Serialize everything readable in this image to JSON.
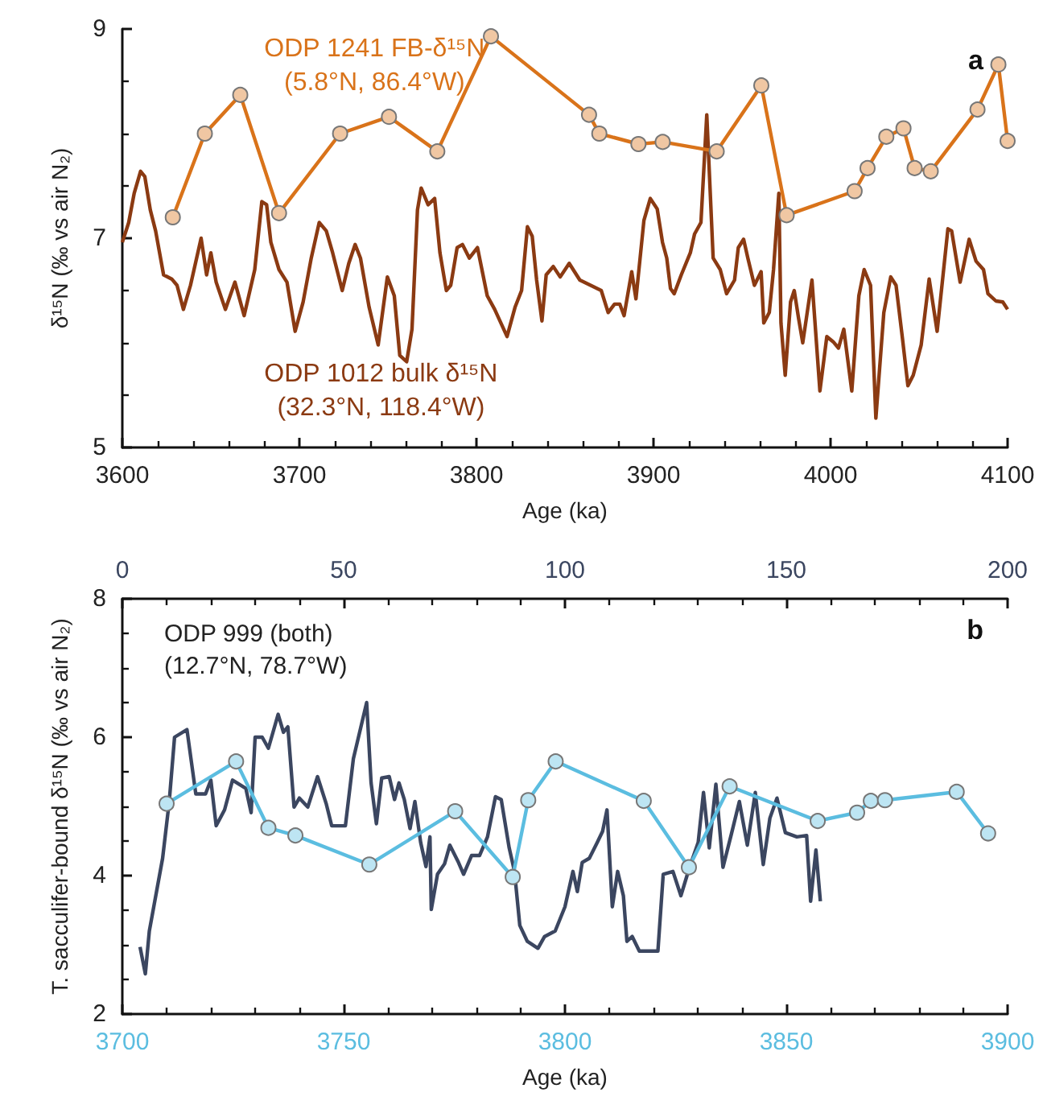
{
  "chart_data": [
    {
      "type": "line",
      "title": "a",
      "xlabel": "Age (ka)",
      "ylabel": "δ¹⁵N (‰ vs air N₂)",
      "xlim": [
        3600,
        4100
      ],
      "xticks": [
        3600,
        3700,
        3800,
        3900,
        4000,
        4100
      ],
      "ylim": [
        5,
        9
      ],
      "yticks": [
        5,
        7,
        9
      ],
      "series": [
        {
          "name": "ODP 1241 FB-δ¹⁵N\n(5.8°N, 86.4°W)",
          "color": "#d9731a",
          "marker": "circle",
          "x": [
            3628.5,
            3646.6,
            3666.6,
            3688.5,
            3723,
            3750.6,
            3777.9,
            3808.2,
            3863.6,
            3869.4,
            3891.5,
            3905.2,
            3935.7,
            3960.9,
            3975.2,
            4013.6,
            4020.9,
            4031.5,
            4041.2,
            4047.5,
            4056.6,
            4083,
            4094.8,
            4100
          ],
          "values": [
            7.2,
            8.0,
            8.37,
            7.24,
            8.0,
            8.16,
            7.83,
            8.93,
            8.18,
            8.0,
            7.9,
            7.92,
            7.83,
            8.46,
            7.22,
            7.45,
            7.67,
            7.97,
            8.05,
            7.67,
            7.64,
            8.23,
            8.66,
            7.93
          ]
        },
        {
          "name": "ODP 1012 bulk δ¹⁵N\n(32.3°N, 118.4°W)",
          "color": "#8b3a12",
          "marker": "none",
          "x": [
            3600,
            3603.6,
            3606.7,
            3610.3,
            3612.7,
            3615.8,
            3618.8,
            3623.3,
            3627.9,
            3630.9,
            3634.5,
            3638.5,
            3644.5,
            3647.6,
            3650,
            3653,
            3658.2,
            3663.6,
            3668.8,
            3674.8,
            3678.8,
            3681.5,
            3683.9,
            3688.5,
            3693,
            3697.6,
            3702.1,
            3706.7,
            3711.2,
            3715.2,
            3718.8,
            3724.2,
            3727.9,
            3731.5,
            3734.5,
            3739.4,
            3744.5,
            3749.7,
            3753.6,
            3756.7,
            3760.6,
            3763.6,
            3766.7,
            3768.8,
            3772.7,
            3776.4,
            3779.4,
            3783,
            3785.5,
            3789.1,
            3792.1,
            3796,
            3800.6,
            3806.1,
            3810.3,
            3817.3,
            3821.8,
            3825.5,
            3828.8,
            3831.5,
            3834,
            3837,
            3839.4,
            3843.4,
            3847.3,
            3852.4,
            3858.4,
            3864.5,
            3870.5,
            3874.4,
            3878,
            3881,
            3883.4,
            3887.7,
            3890.1,
            3894.6,
            3898.2,
            3902.1,
            3905.1,
            3907.5,
            3909.6,
            3911.7,
            3915.7,
            3920.8,
            3923.2,
            3926.8,
            3930.1,
            3933.7,
            3937.7,
            3941.3,
            3945.8,
            3947.9,
            3950.9,
            3953.3,
            3957,
            3960.8,
            3962.3,
            3965.4,
            3967.8,
            3970.8,
            3972,
            3974.4,
            3977.4,
            3979.5,
            3981.9,
            3984.3,
            3986.4,
            3989.5,
            3994,
            3997.9,
            4001.5,
            4004.5,
            4007.5,
            4012,
            4016,
            4019,
            4022.6,
            4025.6,
            4030.1,
            4034,
            4037,
            4040.7,
            4043.7,
            4046.7,
            4051.2,
            4055.7,
            4060.2,
            4066.3,
            4068.4,
            4073.2,
            4078.3,
            4082.2,
            4086.4,
            4088.9,
            4093.4,
            4097.3,
            4100
          ],
          "values": [
            6.96,
            7.15,
            7.43,
            7.64,
            7.59,
            7.27,
            7.07,
            6.65,
            6.61,
            6.55,
            6.32,
            6.55,
            7.0,
            6.65,
            6.86,
            6.58,
            6.32,
            6.58,
            6.26,
            6.7,
            7.35,
            7.32,
            6.96,
            6.7,
            6.58,
            6.11,
            6.39,
            6.81,
            7.15,
            7.07,
            6.86,
            6.5,
            6.76,
            6.94,
            6.81,
            6.34,
            5.98,
            6.63,
            6.45,
            5.88,
            5.82,
            6.13,
            7.27,
            7.48,
            7.32,
            7.38,
            6.86,
            6.5,
            6.55,
            6.91,
            6.94,
            6.81,
            6.91,
            6.45,
            6.32,
            6.06,
            6.34,
            6.5,
            7.11,
            7.02,
            6.6,
            6.21,
            6.65,
            6.73,
            6.63,
            6.76,
            6.6,
            6.55,
            6.5,
            6.29,
            6.37,
            6.37,
            6.26,
            6.68,
            6.42,
            7.17,
            7.38,
            7.28,
            6.96,
            6.81,
            6.52,
            6.47,
            6.65,
            6.86,
            7.04,
            7.15,
            8.18,
            6.81,
            6.7,
            6.47,
            6.6,
            6.91,
            6.99,
            6.81,
            6.55,
            6.68,
            6.19,
            6.29,
            6.7,
            7.43,
            6.19,
            5.69,
            6.39,
            6.5,
            6.24,
            6.0,
            6.24,
            6.6,
            5.54,
            6.06,
            6.01,
            5.95,
            6.13,
            5.54,
            6.45,
            6.7,
            6.55,
            5.28,
            6.29,
            6.63,
            6.55,
            6.03,
            5.59,
            5.69,
            5.98,
            6.61,
            6.11,
            7.09,
            7.07,
            6.58,
            6.99,
            6.78,
            6.7,
            6.47,
            6.4,
            6.39,
            6.32
          ]
        }
      ]
    },
    {
      "type": "line",
      "title": "b",
      "xlabel": "Age (ka)",
      "ylabel": "T. sacculifer-bound δ¹⁵N (‰ vs air N₂)",
      "annotations": [
        "ODP 999 (both)\n(12.7°N, 78.7°W)"
      ],
      "xlim": [
        3700,
        3900
      ],
      "xticks": [
        3700,
        3750,
        3800,
        3850,
        3900
      ],
      "x2lim": [
        0,
        200
      ],
      "x2ticks": [
        0,
        50,
        100,
        150,
        200
      ],
      "ylim": [
        2,
        8
      ],
      "yticks": [
        2,
        4,
        6,
        8
      ],
      "series": [
        {
          "color": "#3b4660",
          "marker": "none",
          "axis": "x2",
          "x": [
            4.0,
            5.2,
            6.1,
            9.1,
            10.6,
            11.8,
            14.6,
            16.6,
            18.8,
            20,
            21.2,
            23.1,
            24.9,
            27.9,
            29.1,
            30,
            31.6,
            33,
            35.2,
            36.4,
            37.4,
            38.8,
            40,
            41.9,
            44.1,
            46.1,
            47.3,
            50.4,
            52.2,
            55.2,
            56.2,
            57.4,
            58.6,
            60.3,
            61.5,
            62.5,
            63.7,
            65,
            66.1,
            67.4,
            68.6,
            69.5,
            69.8,
            71.2,
            72.8,
            74,
            75.8,
            77.1,
            78.9,
            80.7,
            82.5,
            84.3,
            85.6,
            87.4,
            88.6,
            89.8,
            91.5,
            93.9,
            95.4,
            97.8,
            100,
            101.8,
            102.8,
            103.9,
            105.5,
            107.3,
            108.5,
            109.5,
            110.7,
            111.9,
            113.2,
            114,
            115.2,
            116.8,
            121,
            122.2,
            124.4,
            126.2,
            128,
            130.1,
            131.3,
            132.6,
            134.1,
            135.7,
            137.6,
            139.4,
            141.2,
            143,
            144.8,
            146.3,
            147.9,
            149.8,
            152.4,
            154.6,
            155.5,
            156.7,
            157.7
          ],
          "values": [
            2.97,
            2.58,
            3.2,
            4.25,
            5.07,
            6.0,
            6.11,
            5.18,
            5.18,
            5.38,
            4.72,
            4.95,
            5.38,
            5.26,
            4.91,
            6.0,
            6.0,
            5.84,
            6.33,
            6.07,
            6.15,
            4.99,
            5.12,
            4.99,
            5.43,
            5.03,
            4.72,
            4.72,
            5.69,
            6.5,
            5.34,
            4.75,
            5.41,
            5.43,
            5.1,
            5.34,
            5.1,
            4.68,
            5.07,
            4.48,
            4.13,
            4.56,
            3.51,
            4.02,
            4.17,
            4.44,
            4.21,
            4.02,
            4.29,
            4.29,
            4.56,
            5.14,
            5.1,
            4.4,
            4.06,
            3.28,
            3.05,
            2.95,
            3.12,
            3.2,
            3.55,
            4.06,
            3.77,
            4.19,
            4.25,
            4.48,
            4.64,
            4.95,
            3.55,
            4.06,
            3.71,
            3.05,
            3.12,
            2.91,
            2.91,
            4.02,
            4.06,
            3.71,
            4.09,
            4.48,
            5.2,
            4.4,
            5.32,
            4.12,
            4.6,
            5.07,
            4.44,
            5.2,
            4.16,
            4.83,
            5.12,
            4.62,
            4.56,
            4.58,
            3.63,
            4.37,
            3.63
          ]
        },
        {
          "color": "#5bbde0",
          "marker": "circle",
          "x": [
            3710,
            3725.7,
            3733,
            3739.1,
            3755.8,
            3775.2,
            3788.2,
            3791.7,
            3797.9,
            3817.8,
            3828,
            3837.2,
            3857.1,
            3866,
            3869.1,
            3872.3,
            3888.5,
            3895.6
          ],
          "values": [
            5.04,
            5.65,
            4.69,
            4.58,
            4.16,
            4.93,
            3.98,
            5.09,
            5.65,
            5.08,
            4.12,
            5.29,
            4.79,
            4.91,
            5.08,
            5.09,
            5.21,
            4.61
          ]
        }
      ]
    }
  ]
}
